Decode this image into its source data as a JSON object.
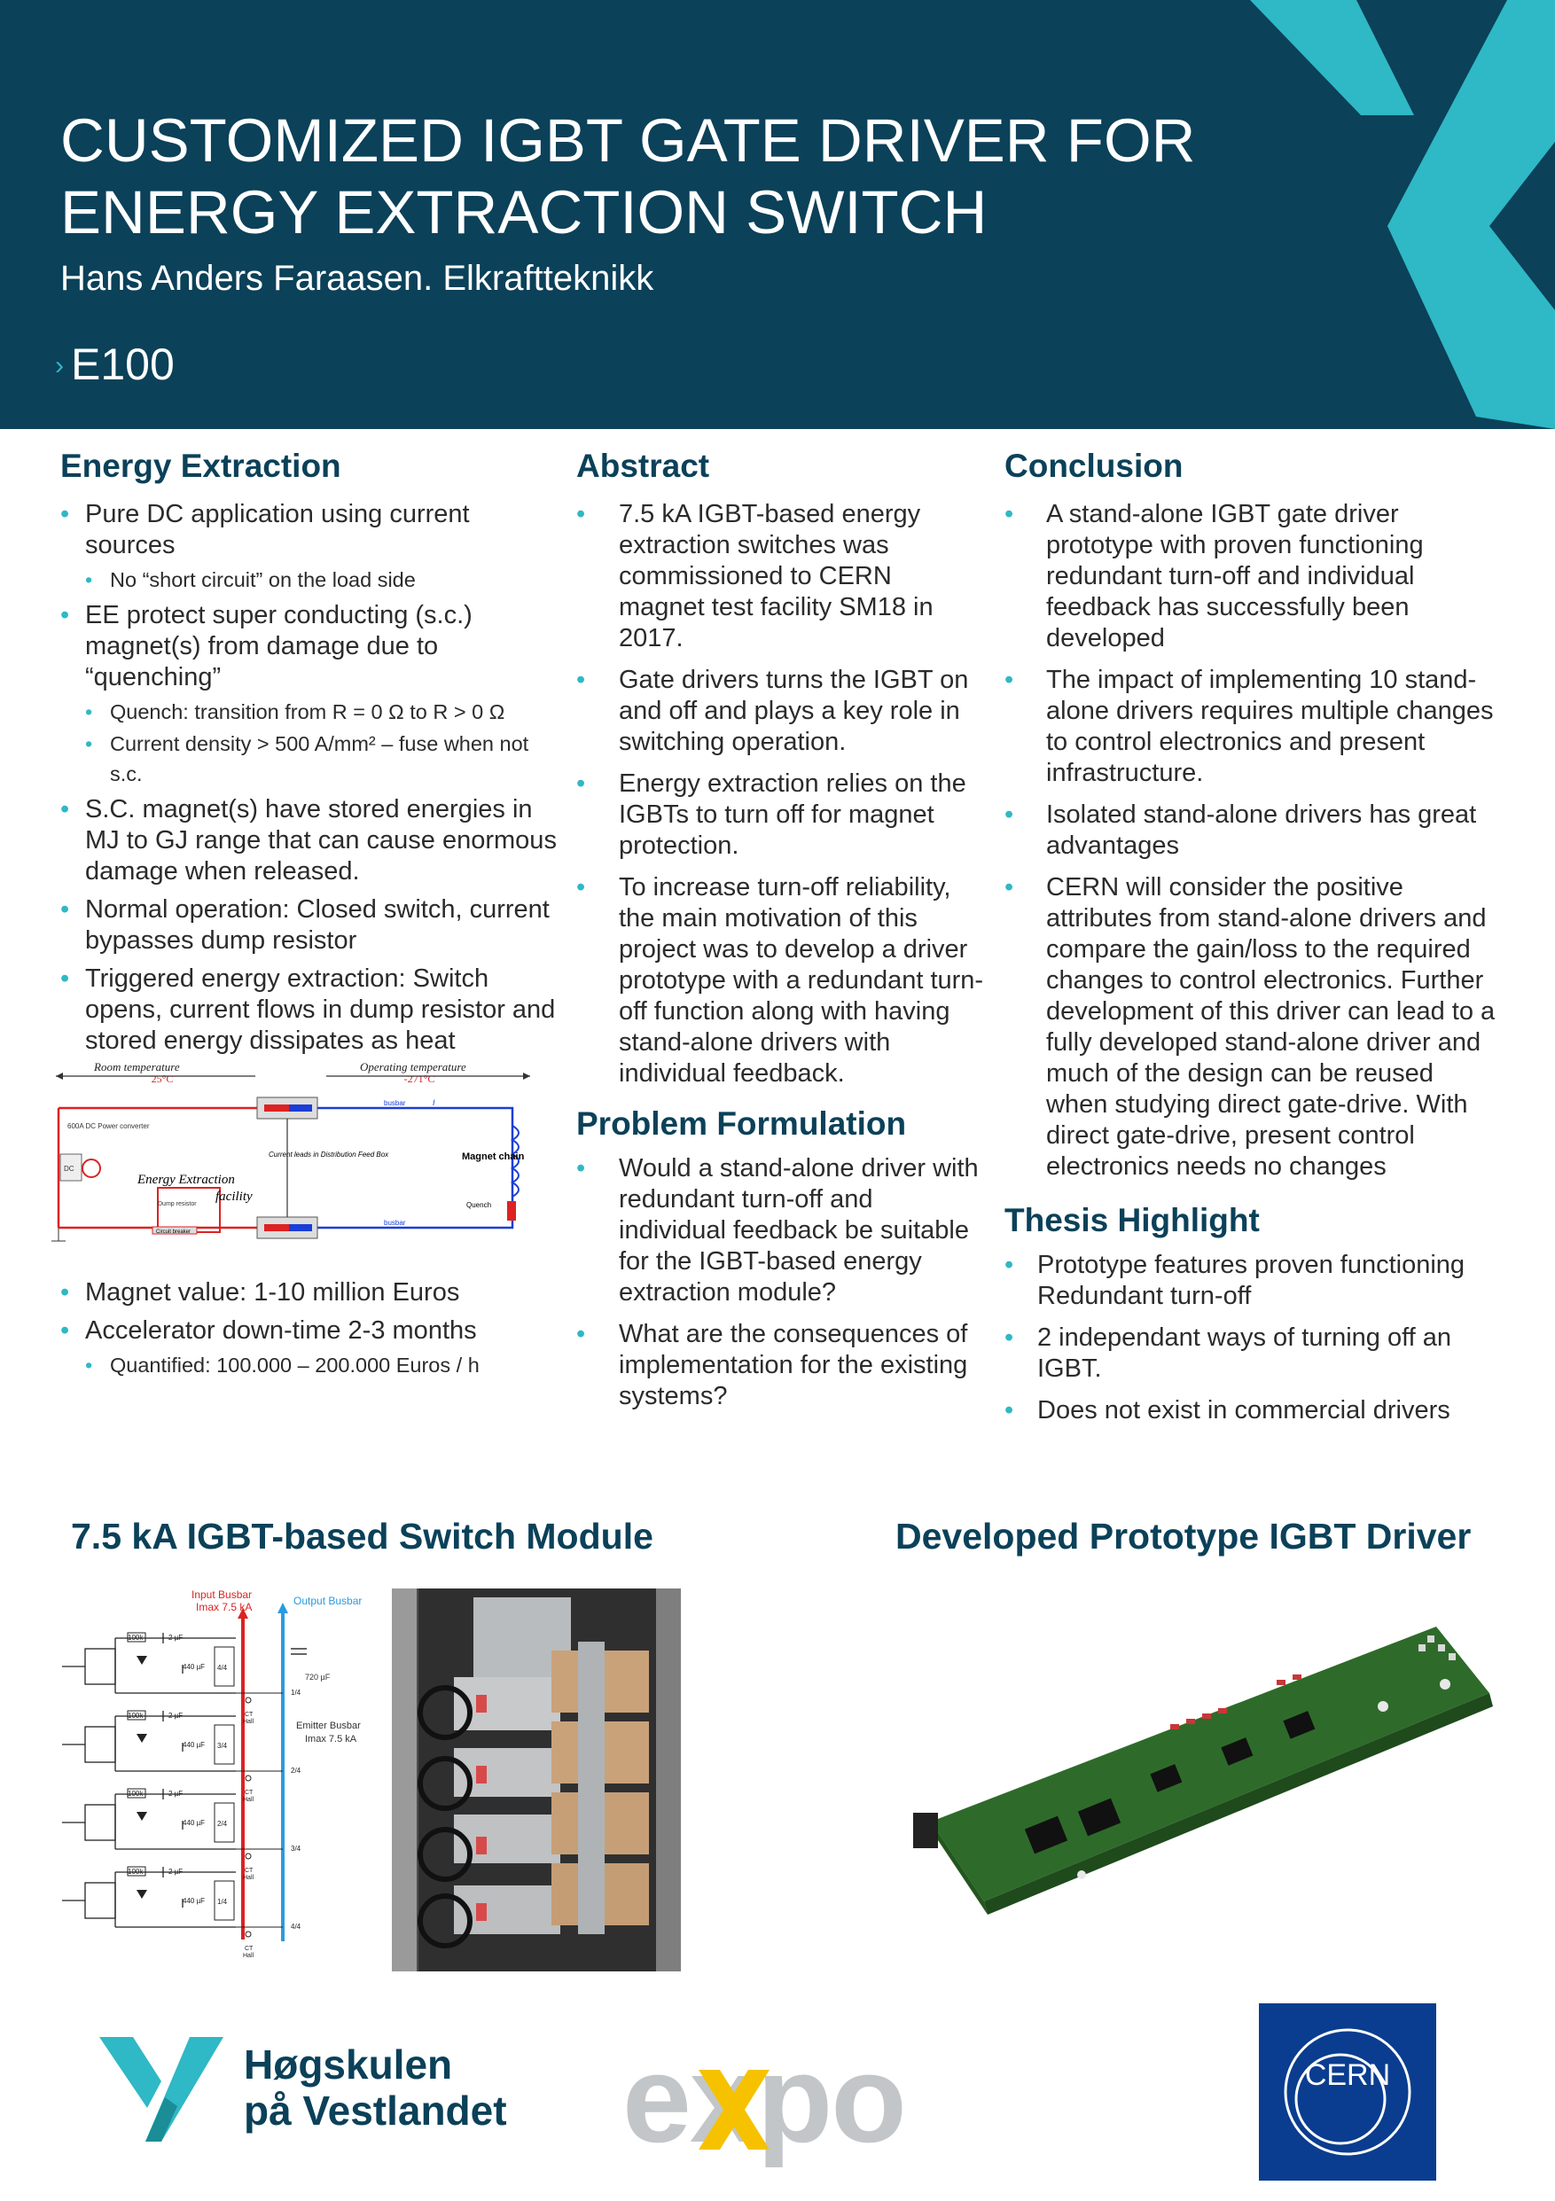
{
  "header": {
    "title_line1": "CUSTOMIZED IGBT GATE DRIVER FOR",
    "title_line2": "ENERGY EXTRACTION SWITCH",
    "author": "Hans Anders Faraasen. Elkraftteknikk",
    "chevron": "›",
    "code": "E100"
  },
  "energy_extraction": {
    "heading": "Energy Extraction",
    "items": [
      {
        "text": "Pure DC application using current sources",
        "sub": [
          "No “short circuit” on the load side"
        ]
      },
      {
        "text": "EE protect super conducting (s.c.) magnet(s) from damage due to “quenching”",
        "sub": [
          "Quench: transition from R = 0 Ω to R > 0 Ω",
          "Current density > 500 A/mm² – fuse when not s.c."
        ]
      },
      {
        "text": "S.C. magnet(s) have stored energies in MJ to GJ range that can cause enormous damage when released.",
        "sub": []
      },
      {
        "text": "Normal operation: Closed switch, current bypasses dump resistor",
        "sub": []
      },
      {
        "text": "Triggered energy extraction: Switch opens, current flows in dump resistor and stored energy dissipates as heat",
        "sub": []
      }
    ],
    "items_after": [
      {
        "text": "Magnet value: 1-10 million Euros",
        "sub": []
      },
      {
        "text": "Accelerator down-time 2-3 months",
        "sub": [
          "Quantified: 100.000 – 200.000 Euros / h"
        ]
      }
    ]
  },
  "circuit": {
    "room_temp": "Room temperature",
    "room_temp_val": "25°C",
    "op_temp": "Operating temperature",
    "op_temp_val": "-271°C",
    "power_converter": "600A DC Power converter",
    "ee_label": "Energy Extraction",
    "facility": "facility",
    "dump_resistor": "Dump resistor",
    "circuit_breaker": "Circuit breaker",
    "current_leads": "Current leads in Distribution Feed Box",
    "magnet_chain": "Magnet chain",
    "quench": "Quench",
    "busbar": "busbar",
    "dc": "DC",
    "i": "I"
  },
  "abstract": {
    "heading": "Abstract",
    "items": [
      "7.5 kA IGBT-based energy extraction switches was commissioned to CERN magnet test facility SM18 in 2017.",
      "Gate drivers turns the IGBT on and off and plays a key role in switching operation.",
      "Energy extraction relies on the IGBTs to turn off for magnet protection.",
      "To increase turn-off reliability, the main motivation of this project was to develop a driver prototype with a redundant turn-off function along with having stand-alone drivers with individual feedback."
    ]
  },
  "problem": {
    "heading": "Problem Formulation",
    "items": [
      "Would a stand-alone driver with redundant turn-off and individual feedback be suitable for the IGBT-based energy extraction module?",
      "What are the consequences of implementation for the existing systems?"
    ]
  },
  "conclusion": {
    "heading": "Conclusion",
    "items": [
      "A stand-alone IGBT gate driver prototype with proven functioning redundant turn-off and individual feedback has successfully been developed",
      "The impact of implementing 10 stand-alone drivers requires multiple changes to control electronics and present infrastructure.",
      "Isolated stand-alone drivers has great advantages",
      "CERN will consider the positive attributes from stand-alone drivers and compare the gain/loss to the required changes to control electronics. Further development of this driver can lead to a fully developed stand-alone driver and much of the design can be reused when studying direct gate-drive. With direct gate-drive, present control electronics needs no changes"
    ]
  },
  "highlight": {
    "heading": "Thesis Highlight",
    "items": [
      "Prototype features proven functioning Redundant turn-off",
      "2 independant ways of turning off an IGBT.",
      "Does not exist in commercial drivers"
    ]
  },
  "switch_module": {
    "heading": "7.5 kA IGBT-based Switch Module",
    "input_busbar": "Input Busbar",
    "input_imax": "Imax 7.5 kA",
    "output_busbar": "Output Busbar",
    "emitter_busbar": "Emitter Busbar",
    "emitter_imax": "Imax 7.5 kA",
    "r": "100k",
    "c1": "2 µF",
    "c2": "440 µF",
    "c_out": "720 µF",
    "fractions": [
      "4/4",
      "3/4",
      "2/4",
      "1/4"
    ],
    "right_fractions": [
      "1/4",
      "2/4",
      "3/4",
      "4/4"
    ],
    "ct": "CT",
    "hall": "Hall"
  },
  "prototype": {
    "heading": "Developed Prototype IGBT Driver"
  },
  "logos": {
    "hvl_line1": "Høgskulen",
    "hvl_line2": "på Vestlandet",
    "expo": "expo",
    "cern": "CERN"
  },
  "colors": {
    "navy": "#0b4159",
    "teal": "#2fb8c5",
    "cern_blue": "#0a3d8f"
  }
}
